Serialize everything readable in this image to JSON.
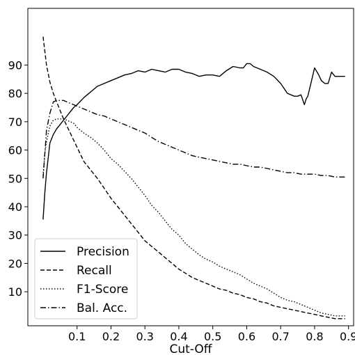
{
  "chart_data": {
    "type": "line",
    "title": "",
    "xlabel": "Cut-Off",
    "ylabel": "",
    "xlim": [
      -0.045,
      0.915
    ],
    "ylim": [
      -2,
      110
    ],
    "xticks": [
      0.1,
      0.2,
      0.3,
      0.4,
      0.5,
      0.6,
      0.7,
      0.8,
      0.9
    ],
    "xtick_labels": [
      "0.1",
      "0.2",
      "0.3",
      "0.4",
      "0.5",
      "0.6",
      "0.7",
      "0.8",
      "0.9"
    ],
    "yticks": [
      10,
      20,
      30,
      40,
      50,
      60,
      70,
      80,
      90
    ],
    "ytick_labels": [
      "10",
      "20",
      "30",
      "40",
      "50",
      "60",
      "70",
      "80",
      "90"
    ],
    "grid": false,
    "legend_position": "bottom-left",
    "series": [
      {
        "name": "Precision",
        "dash": "solid",
        "x": [
          0.0,
          0.005,
          0.01,
          0.02,
          0.03,
          0.04,
          0.05,
          0.06,
          0.07,
          0.08,
          0.09,
          0.1,
          0.12,
          0.14,
          0.16,
          0.18,
          0.2,
          0.22,
          0.24,
          0.26,
          0.28,
          0.3,
          0.32,
          0.34,
          0.36,
          0.38,
          0.4,
          0.42,
          0.44,
          0.46,
          0.48,
          0.5,
          0.52,
          0.54,
          0.56,
          0.58,
          0.59,
          0.6,
          0.61,
          0.62,
          0.64,
          0.66,
          0.68,
          0.7,
          0.72,
          0.74,
          0.75,
          0.76,
          0.77,
          0.775,
          0.78,
          0.79,
          0.8,
          0.81,
          0.82,
          0.83,
          0.84,
          0.85,
          0.86,
          0.87,
          0.88,
          0.89
        ],
        "values": [
          35.5,
          45,
          52,
          62.5,
          65.5,
          67.5,
          69,
          70.5,
          72,
          73.5,
          75,
          76,
          78.5,
          80.5,
          82.5,
          83.5,
          84.5,
          85.5,
          86.5,
          87,
          88,
          87.5,
          88.5,
          88,
          87.5,
          88.5,
          88.5,
          87.5,
          87,
          86,
          86.5,
          86.5,
          86,
          88,
          89.5,
          89,
          89,
          90.5,
          90.5,
          89.5,
          88.5,
          87.5,
          86,
          83.5,
          80,
          79,
          79,
          79.5,
          76,
          78,
          79,
          84,
          89,
          87,
          84.5,
          83.5,
          83.5,
          87.5,
          86,
          86,
          86,
          86
        ]
      },
      {
        "name": "Recall",
        "dash": "dashed",
        "x": [
          0.0,
          0.01,
          0.02,
          0.03,
          0.04,
          0.05,
          0.06,
          0.07,
          0.08,
          0.09,
          0.1,
          0.12,
          0.14,
          0.16,
          0.18,
          0.2,
          0.22,
          0.24,
          0.26,
          0.28,
          0.3,
          0.32,
          0.34,
          0.36,
          0.38,
          0.4,
          0.42,
          0.44,
          0.46,
          0.48,
          0.5,
          0.52,
          0.54,
          0.56,
          0.58,
          0.6,
          0.62,
          0.64,
          0.66,
          0.68,
          0.7,
          0.72,
          0.74,
          0.76,
          0.78,
          0.8,
          0.82,
          0.84,
          0.86,
          0.88,
          0.89
        ],
        "values": [
          100,
          90,
          84,
          80,
          77,
          74,
          71,
          68.5,
          66,
          63.5,
          61,
          56,
          53,
          50,
          46.5,
          43,
          40,
          37,
          34,
          31,
          28,
          26,
          24,
          22,
          20,
          18,
          16.5,
          15,
          14,
          13,
          12,
          11,
          10.5,
          9.5,
          9,
          8,
          7.5,
          6.5,
          6,
          5,
          4.5,
          4,
          3.5,
          3,
          2.5,
          2,
          1.5,
          1,
          0.5,
          0.5,
          0.5
        ]
      },
      {
        "name": "F1-Score",
        "dash": "dotted",
        "x": [
          0.0,
          0.005,
          0.01,
          0.02,
          0.03,
          0.04,
          0.05,
          0.06,
          0.07,
          0.08,
          0.09,
          0.1,
          0.12,
          0.14,
          0.16,
          0.18,
          0.2,
          0.22,
          0.24,
          0.26,
          0.28,
          0.3,
          0.32,
          0.34,
          0.36,
          0.38,
          0.4,
          0.42,
          0.44,
          0.46,
          0.48,
          0.5,
          0.52,
          0.54,
          0.56,
          0.58,
          0.6,
          0.62,
          0.64,
          0.66,
          0.68,
          0.7,
          0.72,
          0.74,
          0.76,
          0.78,
          0.8,
          0.82,
          0.84,
          0.86,
          0.88,
          0.89
        ],
        "values": [
          51,
          59,
          63,
          68.5,
          70.5,
          71,
          71,
          71,
          70.5,
          70,
          69.5,
          68,
          66,
          64.5,
          62.5,
          60,
          57,
          55,
          52.5,
          50,
          47,
          44,
          40.5,
          38,
          35,
          32,
          30,
          27,
          25,
          23,
          21.5,
          20.5,
          19,
          18,
          17,
          16,
          14.5,
          13,
          12,
          11,
          9.5,
          8,
          7,
          6.5,
          5.5,
          4.5,
          3.5,
          2.5,
          2,
          1.5,
          1.5,
          1.5
        ]
      },
      {
        "name": "Bal. Acc.",
        "dash": "dashdot",
        "x": [
          0.0,
          0.01,
          0.02,
          0.03,
          0.04,
          0.05,
          0.06,
          0.07,
          0.08,
          0.09,
          0.1,
          0.12,
          0.14,
          0.16,
          0.18,
          0.2,
          0.22,
          0.24,
          0.26,
          0.28,
          0.3,
          0.32,
          0.34,
          0.36,
          0.38,
          0.4,
          0.42,
          0.44,
          0.46,
          0.48,
          0.5,
          0.52,
          0.54,
          0.56,
          0.58,
          0.6,
          0.62,
          0.64,
          0.66,
          0.68,
          0.7,
          0.72,
          0.74,
          0.76,
          0.78,
          0.8,
          0.82,
          0.84,
          0.86,
          0.88,
          0.89
        ],
        "values": [
          50,
          67,
          73,
          77,
          77.5,
          77.5,
          77.5,
          77,
          76.5,
          76,
          75.5,
          74.5,
          73.5,
          72.5,
          72,
          71,
          70,
          69,
          68,
          67,
          66,
          64.5,
          63,
          62,
          61,
          60,
          59,
          58,
          57.5,
          57,
          56.5,
          56,
          55.5,
          55,
          55,
          54.5,
          54,
          54,
          53.5,
          53,
          52.5,
          52,
          52,
          51.5,
          51.5,
          51.5,
          51,
          51,
          50.5,
          50.5,
          50.5
        ]
      }
    ]
  }
}
